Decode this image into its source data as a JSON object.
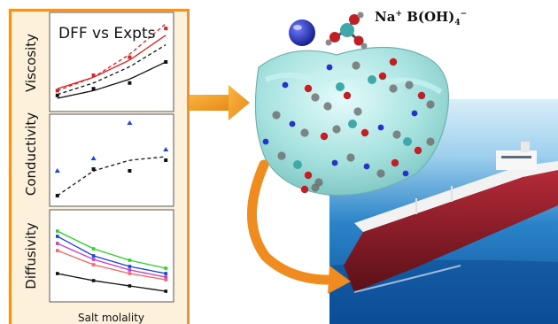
{
  "panel_title": "DFF vs Expts",
  "formula": {
    "cation": "Na",
    "cation_charge": "+",
    "anion": "B(OH)",
    "anion_sub": "4",
    "anion_charge": "−"
  },
  "y_labels": {
    "viscosity": "Viscosity",
    "conductivity": "Conductivity",
    "diffusivity": "Diffusivity"
  },
  "x_label": "Salt molality",
  "colors": {
    "panel_border": "#f0922e",
    "panel_bg": "#fdf1dc",
    "arrow": "#f5a623",
    "sodium": "#2434c8",
    "boron": "#3fa9a9",
    "oxygen": "#c11f26",
    "hydrogen": "#6b6b6b",
    "water_surface": "#8fd6d3",
    "ship_hull": "#8c1f2b"
  },
  "chart_data": [
    {
      "type": "line",
      "title": "",
      "xlabel": "",
      "ylabel": "Viscosity",
      "x": [
        0.05,
        0.35,
        0.65,
        0.95
      ],
      "series": [
        {
          "style": "red-solid",
          "values": [
            0.22,
            0.34,
            0.52,
            0.78
          ]
        },
        {
          "style": "red-dashed",
          "values": [
            0.2,
            0.34,
            0.58,
            0.9
          ]
        },
        {
          "style": "black-solid",
          "values": [
            0.12,
            0.2,
            0.32,
            0.5
          ]
        },
        {
          "style": "black-dashed",
          "values": [
            0.16,
            0.28,
            0.45,
            0.68
          ]
        },
        {
          "style": "red-points",
          "values": [
            0.2,
            0.36,
            0.55,
            0.85
          ]
        },
        {
          "style": "black-points",
          "values": [
            0.15,
            0.22,
            0.28,
            0.5
          ]
        }
      ]
    },
    {
      "type": "scatter",
      "title": "",
      "xlabel": "",
      "ylabel": "Conductivity",
      "x": [
        0.05,
        0.35,
        0.65,
        0.95
      ],
      "series": [
        {
          "style": "blue-triangles",
          "values": [
            0.38,
            0.52,
            0.92,
            0.62
          ]
        },
        {
          "style": "black-points",
          "values": [
            0.1,
            0.4,
            0.38,
            0.5
          ]
        },
        {
          "style": "black-dashed",
          "values": [
            0.1,
            0.38,
            0.5,
            0.54
          ]
        }
      ]
    },
    {
      "type": "line",
      "title": "",
      "xlabel": "Salt molality",
      "ylabel": "Diffusivity",
      "x": [
        0.05,
        0.35,
        0.65,
        0.95
      ],
      "series": [
        {
          "color": "#2bd22b",
          "values": [
            0.78,
            0.58,
            0.45,
            0.36
          ]
        },
        {
          "color": "#1a3fe0",
          "values": [
            0.72,
            0.5,
            0.38,
            0.3
          ]
        },
        {
          "color": "#c63ad6",
          "values": [
            0.64,
            0.46,
            0.34,
            0.26
          ]
        },
        {
          "color": "#ff6060",
          "values": [
            0.56,
            0.4,
            0.3,
            0.23
          ]
        },
        {
          "color": "#111111",
          "values": [
            0.3,
            0.22,
            0.16,
            0.1
          ]
        }
      ]
    }
  ]
}
